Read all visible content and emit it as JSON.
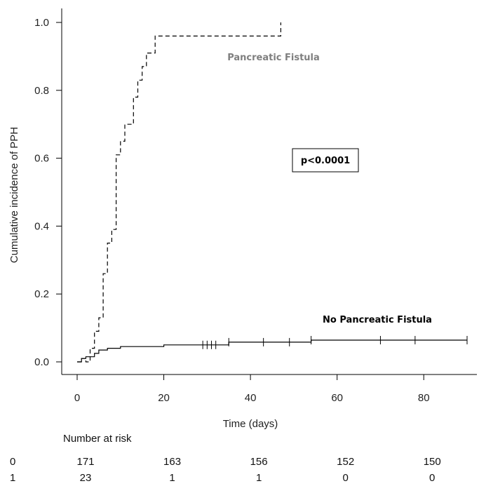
{
  "chart_data": {
    "type": "line",
    "title": "",
    "xlabel": "Time (days)",
    "ylabel": "Cumulative incidence of PPH",
    "xlim": [
      0,
      90
    ],
    "ylim": [
      0,
      1
    ],
    "x_ticks": [
      0,
      20,
      40,
      60,
      80
    ],
    "y_ticks": [
      0.0,
      0.2,
      0.4,
      0.6,
      0.8,
      1.0
    ],
    "x_tick_labels": [
      "0",
      "20",
      "40",
      "60",
      "80"
    ],
    "y_tick_labels": [
      "0.0",
      "0.2",
      "0.4",
      "0.6",
      "0.8",
      "1.0"
    ],
    "grid": false,
    "series": [
      {
        "name": "Pancreatic Fistula",
        "line_style": "dashed",
        "label_color": "#7f7f7f",
        "step_points": [
          [
            0,
            0
          ],
          [
            1,
            0
          ],
          [
            1,
            0.01
          ],
          [
            2,
            0.01
          ],
          [
            2,
            0.0
          ],
          [
            3,
            0.0
          ],
          [
            3,
            0.04
          ],
          [
            4,
            0.04
          ],
          [
            4,
            0.09
          ],
          [
            5,
            0.09
          ],
          [
            5,
            0.13
          ],
          [
            6,
            0.13
          ],
          [
            6,
            0.26
          ],
          [
            7,
            0.26
          ],
          [
            7,
            0.35
          ],
          [
            8,
            0.35
          ],
          [
            8,
            0.39
          ],
          [
            9,
            0.39
          ],
          [
            9,
            0.61
          ],
          [
            10,
            0.61
          ],
          [
            10,
            0.65
          ],
          [
            11,
            0.65
          ],
          [
            11,
            0.7
          ],
          [
            13,
            0.7
          ],
          [
            13,
            0.78
          ],
          [
            14,
            0.78
          ],
          [
            14,
            0.83
          ],
          [
            15,
            0.83
          ],
          [
            15,
            0.87
          ],
          [
            16,
            0.87
          ],
          [
            16,
            0.91
          ],
          [
            18,
            0.91
          ],
          [
            18,
            0.96
          ],
          [
            47,
            0.96
          ],
          [
            47,
            1.0
          ]
        ]
      },
      {
        "name": "No Pancreatic Fistula",
        "line_style": "solid",
        "label_color": "#000000",
        "step_points": [
          [
            0,
            0
          ],
          [
            1,
            0
          ],
          [
            1,
            0.01
          ],
          [
            2,
            0.01
          ],
          [
            2,
            0.015
          ],
          [
            4,
            0.015
          ],
          [
            4,
            0.025
          ],
          [
            5,
            0.025
          ],
          [
            5,
            0.035
          ],
          [
            7,
            0.035
          ],
          [
            7,
            0.04
          ],
          [
            10,
            0.04
          ],
          [
            10,
            0.045
          ],
          [
            20,
            0.045
          ],
          [
            20,
            0.05
          ],
          [
            35,
            0.05
          ],
          [
            35,
            0.058
          ],
          [
            54,
            0.058
          ],
          [
            54,
            0.064
          ],
          [
            90,
            0.064
          ]
        ],
        "censor_x": [
          29,
          30,
          31,
          32,
          35,
          43,
          49,
          54,
          70,
          78,
          90
        ]
      }
    ],
    "annotations": [
      {
        "text": "Pancreatic Fistula"
      },
      {
        "text": "No Pancreatic Fistula"
      },
      {
        "text": "p<0.0001",
        "boxed": true
      }
    ],
    "risk_table": {
      "title": "Number at risk",
      "rows": [
        {
          "group": "0",
          "values": [
            "171",
            "163",
            "156",
            "152",
            "150"
          ]
        },
        {
          "group": "1",
          "values": [
            "23",
            "1",
            "1",
            "0",
            "0"
          ]
        }
      ]
    }
  }
}
